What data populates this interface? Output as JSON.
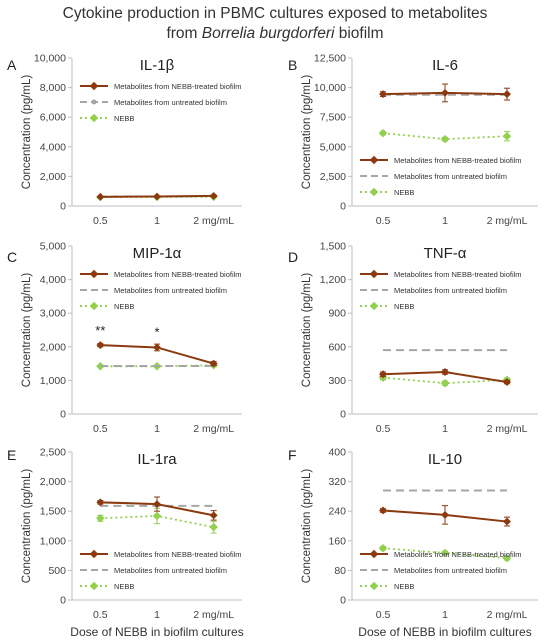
{
  "figure": {
    "title_line1": "Cytokine production in PBMC cultures exposed to metabolites",
    "title_line2_prefix": "from ",
    "title_line2_italic": "Borrelia burgdorferi",
    "title_line2_suffix": " biofilm",
    "shared_xlabel": "Dose of NEBB in biofilm cultures"
  },
  "colors": {
    "treated": "#8b3a0f",
    "untreated": "#a6a6a6",
    "nebb": "#92d050"
  },
  "chart_data": [
    {
      "panel": "A",
      "title": "IL-1β",
      "type": "line",
      "categories": [
        "0.5",
        "1",
        "2 mg/mL"
      ],
      "ylabel": "Concentration (pg/mL)",
      "ylim": [
        0,
        10000
      ],
      "yticks": [
        0,
        2000,
        4000,
        6000,
        8000,
        10000
      ],
      "ytick_labels": [
        "0",
        "2,000",
        "4,000",
        "6,000",
        "8,000",
        "10,000"
      ],
      "legend_position": "top-left",
      "untreated_marker": true,
      "series": [
        {
          "key": "treated",
          "name": "Metabolites from NEBB-treated biofilm",
          "values": [
            620,
            640,
            680
          ],
          "errors": [
            40,
            40,
            50
          ]
        },
        {
          "key": "untreated",
          "name": "Metabolites from untreated biofilm",
          "values": [
            640,
            650,
            660
          ],
          "errors": [
            0,
            0,
            0
          ]
        },
        {
          "key": "nebb",
          "name": "NEBB",
          "values": [
            600,
            610,
            620
          ],
          "errors": [
            30,
            30,
            30
          ]
        }
      ],
      "annotations": []
    },
    {
      "panel": "B",
      "title": "IL-6",
      "type": "line",
      "categories": [
        "0.5",
        "1",
        "2 mg/mL"
      ],
      "ylabel": "Concentration (pg/mL)",
      "ylim": [
        0,
        12500
      ],
      "yticks": [
        0,
        2500,
        5000,
        7500,
        10000,
        12500
      ],
      "ytick_labels": [
        "0",
        "2,500",
        "5,000",
        "7,500",
        "10,000",
        "12,500"
      ],
      "legend_position": "bottom-left",
      "untreated_marker": false,
      "series": [
        {
          "key": "treated",
          "name": "Metabolites from NEBB-treated biofilm",
          "values": [
            9450,
            9550,
            9450
          ],
          "errors": [
            200,
            750,
            500
          ]
        },
        {
          "key": "untreated",
          "name": "Metabolites from untreated biofilm",
          "values": [
            9400,
            9400,
            9400
          ],
          "errors": [
            0,
            0,
            0
          ]
        },
        {
          "key": "nebb",
          "name": "NEBB",
          "values": [
            6150,
            5650,
            5900
          ],
          "errors": [
            150,
            150,
            400
          ]
        }
      ],
      "annotations": []
    },
    {
      "panel": "C",
      "title": "MIP-1α",
      "type": "line",
      "categories": [
        "0.5",
        "1",
        "2 mg/mL"
      ],
      "ylabel": "Concentration (pg/mL)",
      "ylim": [
        0,
        5000
      ],
      "yticks": [
        0,
        1000,
        2000,
        3000,
        4000,
        5000
      ],
      "ytick_labels": [
        "0",
        "1,000",
        "2,000",
        "3,000",
        "4,000",
        "5,000"
      ],
      "legend_position": "top-left",
      "untreated_marker": false,
      "series": [
        {
          "key": "treated",
          "name": "Metabolites from NEBB-treated biofilm",
          "values": [
            2050,
            1980,
            1500
          ],
          "errors": [
            50,
            100,
            60
          ]
        },
        {
          "key": "untreated",
          "name": "Metabolites from untreated biofilm",
          "values": [
            1430,
            1430,
            1430
          ],
          "errors": [
            0,
            0,
            0
          ]
        },
        {
          "key": "nebb",
          "name": "NEBB",
          "values": [
            1420,
            1420,
            1450
          ],
          "errors": [
            30,
            30,
            40
          ]
        }
      ],
      "annotations": [
        {
          "category_index": 0,
          "text": "**",
          "y": 2350
        },
        {
          "category_index": 1,
          "text": "*",
          "y": 2300
        }
      ]
    },
    {
      "panel": "D",
      "title": "TNF-α",
      "type": "line",
      "categories": [
        "0.5",
        "1",
        "2 mg/mL"
      ],
      "ylabel": "Concentration (pg/mL)",
      "ylim": [
        0,
        1500
      ],
      "yticks": [
        0,
        300,
        600,
        900,
        1200,
        1500
      ],
      "ytick_labels": [
        "0",
        "300",
        "600",
        "900",
        "1,200",
        "1,500"
      ],
      "legend_position": "top-left",
      "untreated_marker": false,
      "series": [
        {
          "key": "treated",
          "name": "Metabolites from NEBB-treated biofilm",
          "values": [
            355,
            375,
            285
          ],
          "errors": [
            20,
            20,
            15
          ]
        },
        {
          "key": "untreated",
          "name": "Metabolites from untreated biofilm",
          "values": [
            570,
            570,
            570
          ],
          "errors": [
            0,
            0,
            0
          ]
        },
        {
          "key": "nebb",
          "name": "NEBB",
          "values": [
            325,
            275,
            305
          ],
          "errors": [
            20,
            20,
            15
          ]
        }
      ],
      "annotations": []
    },
    {
      "panel": "E",
      "title": "IL-1ra",
      "type": "line",
      "categories": [
        "0.5",
        "1",
        "2 mg/mL"
      ],
      "ylabel": "Concentration (pg/mL)",
      "ylim": [
        0,
        2500
      ],
      "yticks": [
        0,
        500,
        1000,
        1500,
        2000,
        2500
      ],
      "ytick_labels": [
        "0",
        "500",
        "1,000",
        "1,500",
        "2,000",
        "2,500"
      ],
      "legend_position": "bottom-left",
      "untreated_marker": false,
      "series": [
        {
          "key": "treated",
          "name": "Metabolites from NEBB-treated biofilm",
          "values": [
            1650,
            1620,
            1430
          ],
          "errors": [
            30,
            120,
            80
          ]
        },
        {
          "key": "untreated",
          "name": "Metabolites from untreated biofilm",
          "values": [
            1590,
            1590,
            1590
          ],
          "errors": [
            0,
            0,
            0
          ]
        },
        {
          "key": "nebb",
          "name": "NEBB",
          "values": [
            1380,
            1420,
            1230
          ],
          "errors": [
            50,
            130,
            100
          ]
        }
      ],
      "annotations": []
    },
    {
      "panel": "F",
      "title": "IL-10",
      "type": "line",
      "categories": [
        "0.5",
        "1",
        "2 mg/mL"
      ],
      "ylabel": "Concentration (pg/mL)",
      "ylim": [
        0,
        400
      ],
      "yticks": [
        0,
        80,
        160,
        240,
        320,
        400
      ],
      "ytick_labels": [
        "0",
        "80",
        "160",
        "240",
        "320",
        "400"
      ],
      "legend_position": "bottom-left",
      "untreated_marker": false,
      "series": [
        {
          "key": "treated",
          "name": "Metabolites from NEBB-treated biofilm",
          "values": [
            242,
            230,
            212
          ],
          "errors": [
            5,
            25,
            12
          ]
        },
        {
          "key": "untreated",
          "name": "Metabolites from untreated biofilm",
          "values": [
            296,
            296,
            296
          ],
          "errors": [
            0,
            0,
            0
          ]
        },
        {
          "key": "nebb",
          "name": "NEBB",
          "values": [
            140,
            127,
            113
          ],
          "errors": [
            5,
            5,
            5
          ]
        }
      ],
      "annotations": []
    }
  ]
}
